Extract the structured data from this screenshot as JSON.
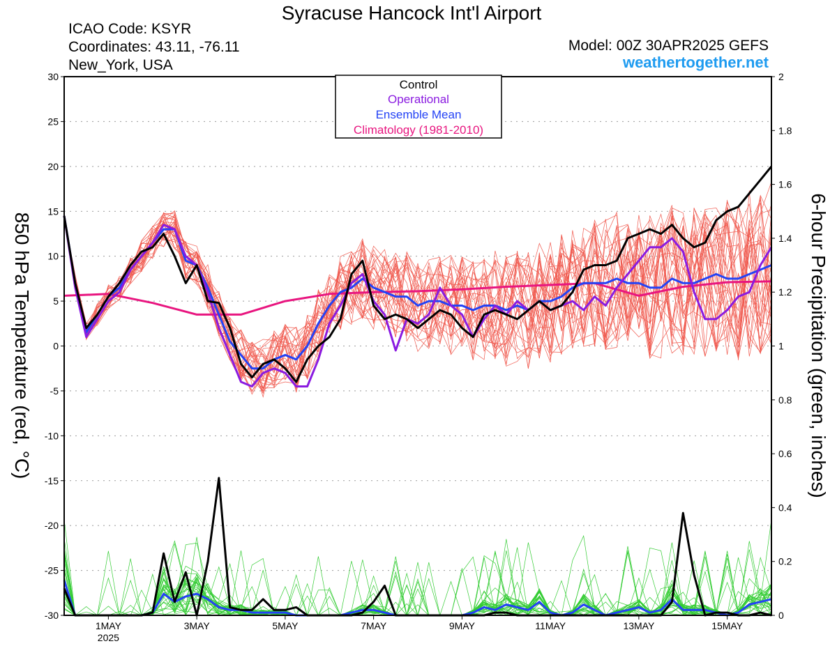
{
  "header": {
    "title": "Syracuse Hancock Int'l Airport",
    "icao": "ICAO Code: KSYR",
    "coords": "Coordinates: 43.11, -76.11",
    "location": "New_York, USA",
    "model": "Model: 00Z 30APR2025 GEFS",
    "brand": "weathertogether.net"
  },
  "chart_data": {
    "type": "line",
    "ylabel_left": "850 hPa Temperature (red, °C)",
    "ylabel_right": "6-hour Precipitation (green, inches)",
    "left_axis": {
      "ylim": [
        -30,
        30
      ],
      "ticks": [
        "30",
        "25",
        "20",
        "15",
        "10",
        "5",
        "0",
        "-5",
        "-10",
        "-15",
        "-20",
        "-25",
        "-30"
      ]
    },
    "right_axis": {
      "ylim": [
        0,
        2
      ],
      "ticks": [
        "2",
        "1.8",
        "1.6",
        "1.4",
        "1.2",
        "1",
        "0.8",
        "0.6",
        "0.4",
        "0.2",
        "0"
      ]
    },
    "x_ticks": [
      {
        "label": "1MAY",
        "sub": "2025",
        "day": 1
      },
      {
        "label": "3MAY",
        "day": 3
      },
      {
        "label": "5MAY",
        "day": 5
      },
      {
        "label": "7MAY",
        "day": 7
      },
      {
        "label": "9MAY",
        "day": 9
      },
      {
        "label": "11MAY",
        "day": 11
      },
      {
        "label": "13MAY",
        "day": 13
      },
      {
        "label": "15MAY",
        "day": 15
      }
    ],
    "x_range_days": [
      30.0,
      46.0
    ],
    "grid": "dotted horizontal",
    "legend": {
      "placement": "top-center",
      "entries": [
        {
          "label": "Control",
          "color": "#000000"
        },
        {
          "label": "Operational",
          "color": "#8a1be0"
        },
        {
          "label": "Ensemble Mean",
          "color": "#2342f5"
        },
        {
          "label": "Climatology (1981-2010)",
          "color": "#e8157f"
        }
      ]
    },
    "series": [
      {
        "name": "Control",
        "axis": "temp",
        "color": "#000000",
        "x": [
          30.0,
          30.25,
          30.5,
          30.75,
          31.0,
          31.25,
          31.5,
          31.75,
          32.0,
          32.25,
          32.5,
          32.75,
          33.0,
          33.25,
          33.5,
          33.75,
          34.0,
          34.25,
          34.5,
          34.75,
          35.0,
          35.25,
          35.5,
          35.75,
          36.0,
          36.25,
          36.5,
          36.75,
          37.0,
          37.25,
          37.5,
          37.75,
          38.0,
          38.25,
          38.5,
          38.75,
          39.0,
          39.25,
          39.5,
          39.75,
          40.0,
          40.25,
          40.5,
          40.75,
          41.0,
          41.25,
          41.5,
          41.75,
          42.0,
          42.25,
          42.5,
          42.75,
          43.0,
          43.25,
          43.5,
          43.75,
          44.0,
          44.25,
          44.5,
          44.75,
          45.0,
          45.25,
          45.5,
          45.75,
          46.0
        ],
        "values": [
          14.5,
          7.0,
          2.0,
          3.5,
          5.5,
          7.0,
          9.0,
          10.5,
          11.0,
          12.5,
          10.0,
          7.0,
          9.0,
          5.0,
          4.8,
          2.0,
          -2.0,
          -3.5,
          -2.0,
          -1.5,
          -2.5,
          -4.0,
          -1.5,
          0.0,
          1.0,
          3.0,
          8.0,
          9.5,
          4.5,
          3.0,
          3.5,
          3.0,
          2.0,
          3.0,
          4.0,
          3.5,
          2.0,
          1.0,
          3.5,
          4.0,
          3.5,
          3.0,
          4.0,
          5.0,
          4.0,
          4.5,
          6.0,
          8.5,
          9.0,
          9.0,
          9.5,
          12.0,
          12.5,
          13.0,
          12.5,
          13.5,
          12.0,
          11.0,
          11.5,
          14.0,
          15.0,
          15.5,
          17.0,
          18.5,
          20.0
        ]
      },
      {
        "name": "Operational",
        "axis": "temp",
        "color": "#8a1be0",
        "x": [
          30.0,
          30.25,
          30.5,
          30.75,
          31.0,
          31.25,
          31.5,
          31.75,
          32.0,
          32.25,
          32.5,
          32.75,
          33.0,
          33.25,
          33.5,
          33.75,
          34.0,
          34.25,
          34.5,
          34.75,
          35.0,
          35.25,
          35.5,
          35.75,
          36.0,
          36.25,
          36.5,
          36.75,
          37.0,
          37.25,
          37.5,
          37.75,
          38.0,
          38.25,
          38.5,
          38.75,
          39.0,
          39.25,
          39.5,
          39.75,
          40.0,
          40.25,
          40.5,
          40.75,
          41.0,
          41.25,
          41.5,
          41.75,
          42.0,
          42.25,
          42.5,
          42.75,
          43.0,
          43.25,
          43.5,
          43.75,
          44.0,
          44.25,
          44.5,
          44.75,
          45.0,
          45.25,
          45.5,
          45.75,
          46.0
        ],
        "values": [
          14.5,
          6.5,
          1.0,
          3.0,
          5.0,
          6.0,
          8.5,
          10.0,
          11.5,
          13.5,
          13.0,
          10.0,
          9.0,
          6.0,
          2.0,
          -1.0,
          -4.0,
          -4.5,
          -3.0,
          -2.5,
          -3.0,
          -4.5,
          -4.5,
          -1.5,
          2.5,
          4.5,
          7.0,
          8.0,
          5.0,
          3.5,
          -0.5,
          3.0,
          2.5,
          3.5,
          6.5,
          4.5,
          3.5,
          1.0,
          3.0,
          4.5,
          3.5,
          5.0,
          4.0,
          5.0,
          4.0,
          4.5,
          5.0,
          4.0,
          5.5,
          4.5,
          6.5,
          8.0,
          9.5,
          11.0,
          11.0,
          12.0,
          10.5,
          6.0,
          3.0,
          3.0,
          4.0,
          5.5,
          6.0,
          9.0,
          11.0
        ]
      },
      {
        "name": "Ensemble Mean",
        "axis": "temp",
        "color": "#2342f5",
        "x": [
          30.0,
          30.25,
          30.5,
          30.75,
          31.0,
          31.25,
          31.5,
          31.75,
          32.0,
          32.25,
          32.5,
          32.75,
          33.0,
          33.25,
          33.5,
          33.75,
          34.0,
          34.25,
          34.5,
          34.75,
          35.0,
          35.25,
          35.5,
          35.75,
          36.0,
          36.25,
          36.5,
          36.75,
          37.0,
          37.25,
          37.5,
          37.75,
          38.0,
          38.25,
          38.5,
          38.75,
          39.0,
          39.25,
          39.5,
          39.75,
          40.0,
          40.25,
          40.5,
          40.75,
          41.0,
          41.25,
          41.5,
          41.75,
          42.0,
          42.25,
          42.5,
          42.75,
          43.0,
          43.25,
          43.5,
          43.75,
          44.0,
          44.25,
          44.5,
          44.75,
          45.0,
          45.25,
          45.5,
          45.75,
          46.0
        ],
        "values": [
          14.5,
          7.0,
          1.5,
          3.5,
          5.5,
          6.5,
          8.5,
          10.0,
          11.5,
          13.0,
          13.0,
          9.5,
          9.0,
          6.5,
          3.5,
          0.5,
          -1.0,
          -2.5,
          -2.5,
          -1.5,
          -1.0,
          -1.5,
          0.0,
          2.5,
          4.5,
          6.0,
          6.5,
          7.5,
          6.5,
          6.0,
          5.5,
          5.5,
          4.5,
          5.0,
          5.0,
          4.5,
          4.5,
          4.0,
          4.5,
          4.5,
          4.0,
          4.5,
          4.0,
          5.0,
          5.0,
          5.5,
          6.5,
          7.0,
          7.0,
          7.0,
          7.5,
          7.0,
          7.0,
          6.5,
          6.5,
          7.5,
          7.0,
          7.0,
          7.5,
          8.0,
          7.5,
          7.5,
          8.0,
          8.5,
          9.0
        ]
      },
      {
        "name": "Climatology (1981-2010)",
        "axis": "temp",
        "color": "#e8157f",
        "x": [
          30.0,
          31.0,
          32.0,
          33.0,
          34.0,
          35.0,
          36.0,
          37.0,
          38.0,
          39.0,
          40.0,
          41.0,
          42.0,
          43.0,
          44.0,
          45.0,
          46.0
        ],
        "values": [
          5.6,
          5.8,
          4.8,
          3.5,
          3.5,
          5.0,
          5.8,
          6.0,
          6.1,
          6.3,
          6.6,
          6.8,
          7.0,
          5.6,
          6.6,
          7.1,
          7.2
        ]
      },
      {
        "name": "Control",
        "axis": "precip",
        "color": "#000000",
        "x": [
          30.0,
          30.25,
          30.5,
          30.75,
          31.0,
          31.25,
          31.5,
          31.75,
          32.0,
          32.25,
          32.5,
          32.75,
          33.0,
          33.25,
          33.5,
          33.75,
          34.0,
          34.25,
          34.5,
          34.75,
          35.0,
          35.25,
          35.5,
          35.75,
          36.0,
          36.25,
          36.5,
          36.75,
          37.0,
          37.25,
          37.5,
          37.75,
          38.0,
          38.25,
          38.5,
          38.75,
          39.0,
          39.25,
          39.5,
          39.75,
          40.0,
          40.25,
          40.5,
          40.75,
          41.0,
          41.25,
          41.5,
          41.75,
          42.0,
          42.25,
          42.5,
          42.75,
          43.0,
          43.25,
          43.5,
          43.75,
          44.0,
          44.25,
          44.5,
          44.75,
          45.0,
          45.25,
          45.5,
          45.75,
          46.0
        ],
        "values": [
          0.1,
          0.0,
          0.0,
          0.0,
          0.0,
          0.0,
          0.0,
          0.0,
          0.01,
          0.23,
          0.05,
          0.16,
          0.0,
          0.2,
          0.51,
          0.03,
          0.02,
          0.02,
          0.06,
          0.02,
          0.02,
          0.03,
          0.0,
          0.0,
          0.0,
          0.0,
          0.0,
          0.01,
          0.05,
          0.11,
          0.0,
          0.0,
          0.0,
          0.0,
          0.0,
          0.0,
          0.0,
          0.0,
          0.0,
          0.01,
          0.01,
          0.0,
          0.0,
          0.0,
          0.0,
          0.0,
          0.0,
          0.0,
          0.0,
          0.0,
          0.0,
          0.0,
          0.0,
          0.0,
          0.0,
          0.05,
          0.38,
          0.15,
          0.0,
          0.01,
          0.01,
          0.0,
          0.0,
          0.01,
          0.0
        ]
      },
      {
        "name": "Ensemble Mean",
        "axis": "precip",
        "color": "#2342f5",
        "x": [
          30.0,
          30.25,
          30.5,
          30.75,
          31.0,
          31.25,
          31.5,
          31.75,
          32.0,
          32.25,
          32.5,
          32.75,
          33.0,
          33.25,
          33.5,
          33.75,
          34.0,
          34.25,
          34.5,
          34.75,
          35.0,
          35.25,
          35.5,
          35.75,
          36.0,
          36.25,
          36.5,
          36.75,
          37.0,
          37.25,
          37.5,
          37.75,
          38.0,
          38.25,
          38.5,
          38.75,
          39.0,
          39.25,
          39.5,
          39.75,
          40.0,
          40.25,
          40.5,
          40.75,
          41.0,
          41.25,
          41.5,
          41.75,
          42.0,
          42.25,
          42.5,
          42.75,
          43.0,
          43.25,
          43.5,
          43.75,
          44.0,
          44.25,
          44.5,
          44.75,
          45.0,
          45.25,
          45.5,
          45.75,
          46.0
        ],
        "values": [
          0.13,
          0.0,
          0.0,
          0.0,
          0.0,
          0.0,
          0.0,
          0.0,
          0.01,
          0.08,
          0.05,
          0.07,
          0.08,
          0.06,
          0.03,
          0.02,
          0.02,
          0.01,
          0.01,
          0.01,
          0.01,
          0.0,
          0.0,
          0.0,
          0.0,
          0.0,
          0.01,
          0.02,
          0.02,
          0.01,
          0.0,
          0.0,
          0.0,
          0.0,
          0.0,
          0.0,
          0.0,
          0.01,
          0.03,
          0.02,
          0.04,
          0.03,
          0.02,
          0.05,
          0.01,
          0.0,
          0.01,
          0.04,
          0.02,
          0.0,
          0.01,
          0.02,
          0.03,
          0.01,
          0.02,
          0.06,
          0.02,
          0.02,
          0.02,
          0.01,
          0.0,
          0.01,
          0.04,
          0.05,
          0.06
        ]
      }
    ],
    "member_count_temp": 30,
    "member_count_precip": 30,
    "member_color_temp": "#f05a4f",
    "member_color_precip": "#33cc33"
  }
}
